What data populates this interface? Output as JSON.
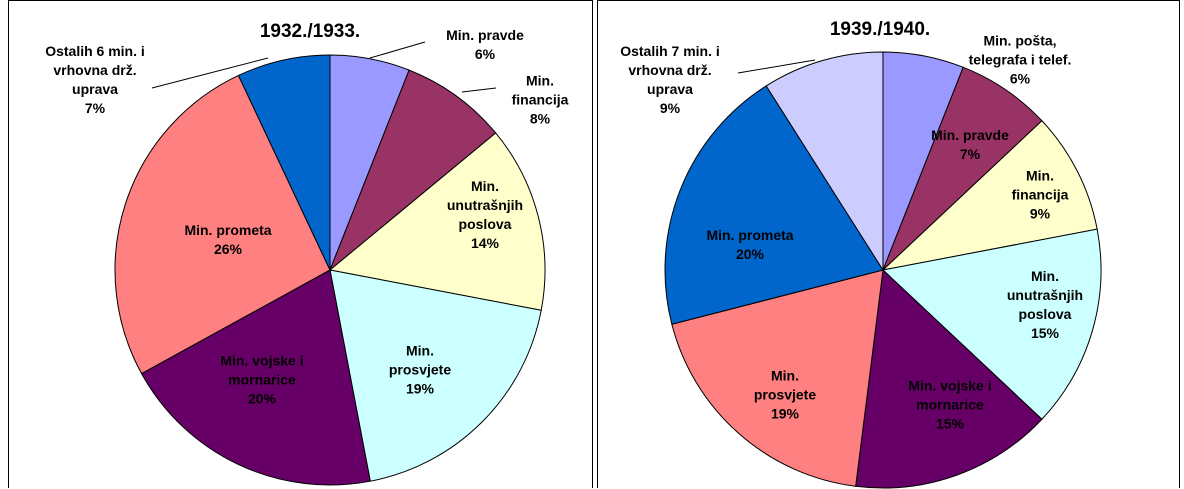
{
  "chart_data": [
    {
      "type": "pie",
      "title": "1932./1933.",
      "categories": [
        "Min. pravde",
        "Min. financija",
        "Min. unutrašnjih poslova",
        "Min. prosvjete",
        "Min. vojske i mornarice",
        "Min. prometa",
        "Ostalih 6 min. i vrhovna drž. uprava"
      ],
      "values": [
        6,
        8,
        14,
        19,
        20,
        26,
        7
      ],
      "value_labels": [
        "6%",
        "8%",
        "14%",
        "19%",
        "20%",
        "26%",
        "7%"
      ],
      "colors": [
        "#9999ff",
        "#993366",
        "#ffffcc",
        "#ccffff",
        "#660066",
        "#ff8080",
        "#0066cc"
      ]
    },
    {
      "type": "pie",
      "title": "1939./1940.",
      "categories": [
        "Min. pošta, telegrafa i telef.",
        "Min. pravde",
        "Min. financija",
        "Min. unutrašnjih poslova",
        "Min. vojske i mornarice",
        "Min. prosvjete",
        "Min. prometa",
        "Ostalih 7 min. i vrhovna drž. uprava"
      ],
      "values": [
        6,
        7,
        9,
        15,
        15,
        19,
        20,
        9
      ],
      "value_labels": [
        "6%",
        "7%",
        "9%",
        "15%",
        "15%",
        "19%",
        "20%",
        "9%"
      ],
      "colors": [
        "#9999ff",
        "#993366",
        "#ffffcc",
        "#ccffff",
        "#660066",
        "#ff8080",
        "#0066cc",
        "#ccccff"
      ]
    }
  ]
}
